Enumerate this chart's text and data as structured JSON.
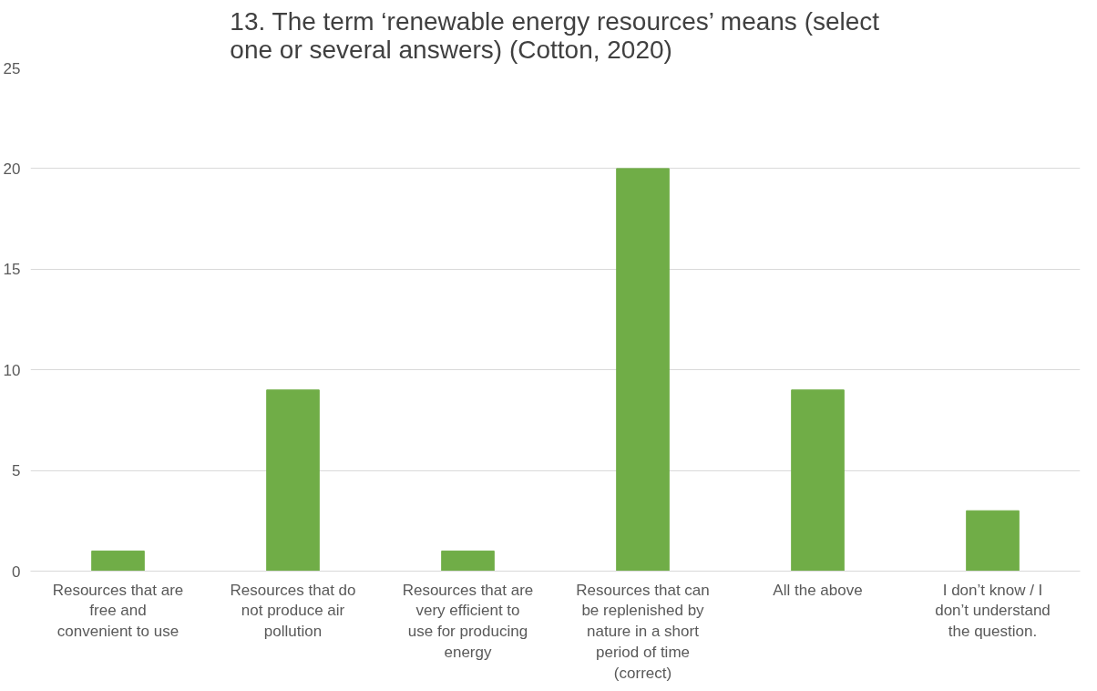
{
  "chart_data": {
    "type": "bar",
    "title": "13. The term ‘renewable energy resources’ means (select one or several answers) (Cotton, 2020)",
    "categories": [
      "Resources that are free and convenient to use",
      "Resources that do not produce air pollution",
      "Resources that are very efficient to use for producing energy",
      "Resources that can be replenished by nature in a short period of time (correct)",
      "All the above",
      "I don’t know / I don’t understand the question."
    ],
    "values": [
      1,
      9,
      1,
      20,
      9,
      3
    ],
    "color": "#70ad47",
    "ylim": [
      0,
      25
    ],
    "yticks": [
      0,
      5,
      10,
      15,
      20,
      25
    ],
    "grid": "y"
  }
}
